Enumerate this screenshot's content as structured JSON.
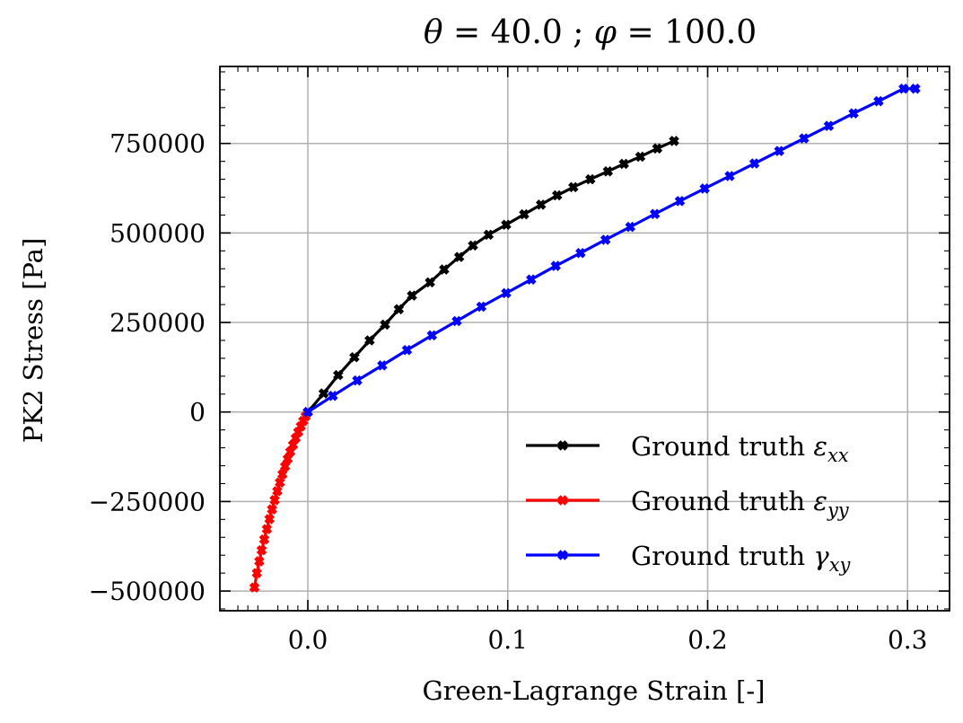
{
  "chart_data": {
    "type": "line",
    "title_parts": {
      "v1": "θ",
      "eq1": " = 40.0 ; ",
      "v2": "φ",
      "eq2": " = 100.0"
    },
    "xlabel": "Green-Lagrange Strain [-]",
    "ylabel": "PK2 Stress [Pa]",
    "xlim": [
      -0.044,
      0.321
    ],
    "ylim": [
      -555000,
      965000
    ],
    "x_ticks": [
      {
        "value": 0.0,
        "label": "0.0"
      },
      {
        "value": 0.1,
        "label": "0.1"
      },
      {
        "value": 0.2,
        "label": "0.2"
      },
      {
        "value": 0.3,
        "label": "0.3"
      }
    ],
    "y_ticks": [
      {
        "value": 750000,
        "label": "750000"
      },
      {
        "value": 500000,
        "label": "500000"
      },
      {
        "value": 250000,
        "label": "250000"
      },
      {
        "value": 0,
        "label": "0"
      },
      {
        "value": -250000,
        "label": "−250000"
      },
      {
        "value": -500000,
        "label": "−500000"
      }
    ],
    "grid": true,
    "legend_position": "lower-right",
    "series": [
      {
        "legend_text": "Ground truth ",
        "symbol": "ε",
        "subscript": "xx",
        "color": "#000000",
        "x": [
          0.0,
          0.0079,
          0.0152,
          0.0233,
          0.0309,
          0.0386,
          0.0455,
          0.0521,
          0.0611,
          0.0682,
          0.0757,
          0.0826,
          0.0904,
          0.0992,
          0.1082,
          0.1166,
          0.1247,
          0.1328,
          0.1413,
          0.1501,
          0.1581,
          0.1663,
          0.1748,
          0.1832
        ],
        "y": [
          0,
          52000,
          103000,
          153000,
          200000,
          244000,
          287000,
          325000,
          362000,
          398000,
          433000,
          465000,
          495000,
          523000,
          552000,
          579000,
          605000,
          628000,
          650000,
          672000,
          693000,
          713000,
          736000,
          757000
        ]
      },
      {
        "legend_text": "Ground truth ",
        "symbol": "ε",
        "subscript": "yy",
        "color": "#ff0000",
        "x": [
          0.0,
          -0.0011,
          -0.0023,
          -0.0035,
          -0.0048,
          -0.0061,
          -0.0074,
          -0.0088,
          -0.0101,
          -0.0114,
          -0.0127,
          -0.014,
          -0.0153,
          -0.0166,
          -0.0179,
          -0.0192,
          -0.0205,
          -0.0218,
          -0.0231,
          -0.0243,
          -0.0255,
          -0.0267
        ],
        "y": [
          0,
          -12000,
          -25000,
          -40000,
          -56000,
          -73000,
          -92000,
          -111000,
          -131000,
          -152000,
          -174000,
          -197000,
          -221000,
          -246000,
          -272000,
          -299000,
          -327000,
          -356000,
          -386000,
          -417000,
          -450000,
          -490000
        ]
      },
      {
        "legend_text": "Ground truth ",
        "symbol": "γ",
        "subscript": "xy",
        "color": "#0000ff",
        "x": [
          0.0,
          0.0125,
          0.0247,
          0.0372,
          0.0496,
          0.0621,
          0.0745,
          0.0868,
          0.0992,
          0.1117,
          0.124,
          0.1364,
          0.1489,
          0.1613,
          0.1736,
          0.1861,
          0.1985,
          0.211,
          0.2234,
          0.2358,
          0.2482,
          0.2606,
          0.273,
          0.2855,
          0.298,
          0.3039
        ],
        "y": [
          0,
          45000,
          88000,
          130000,
          173000,
          214000,
          254000,
          294000,
          332000,
          370000,
          408000,
          444000,
          481000,
          517000,
          553000,
          589000,
          624000,
          659000,
          694000,
          729000,
          764000,
          799000,
          834000,
          868000,
          903000,
          903000
        ]
      }
    ]
  }
}
